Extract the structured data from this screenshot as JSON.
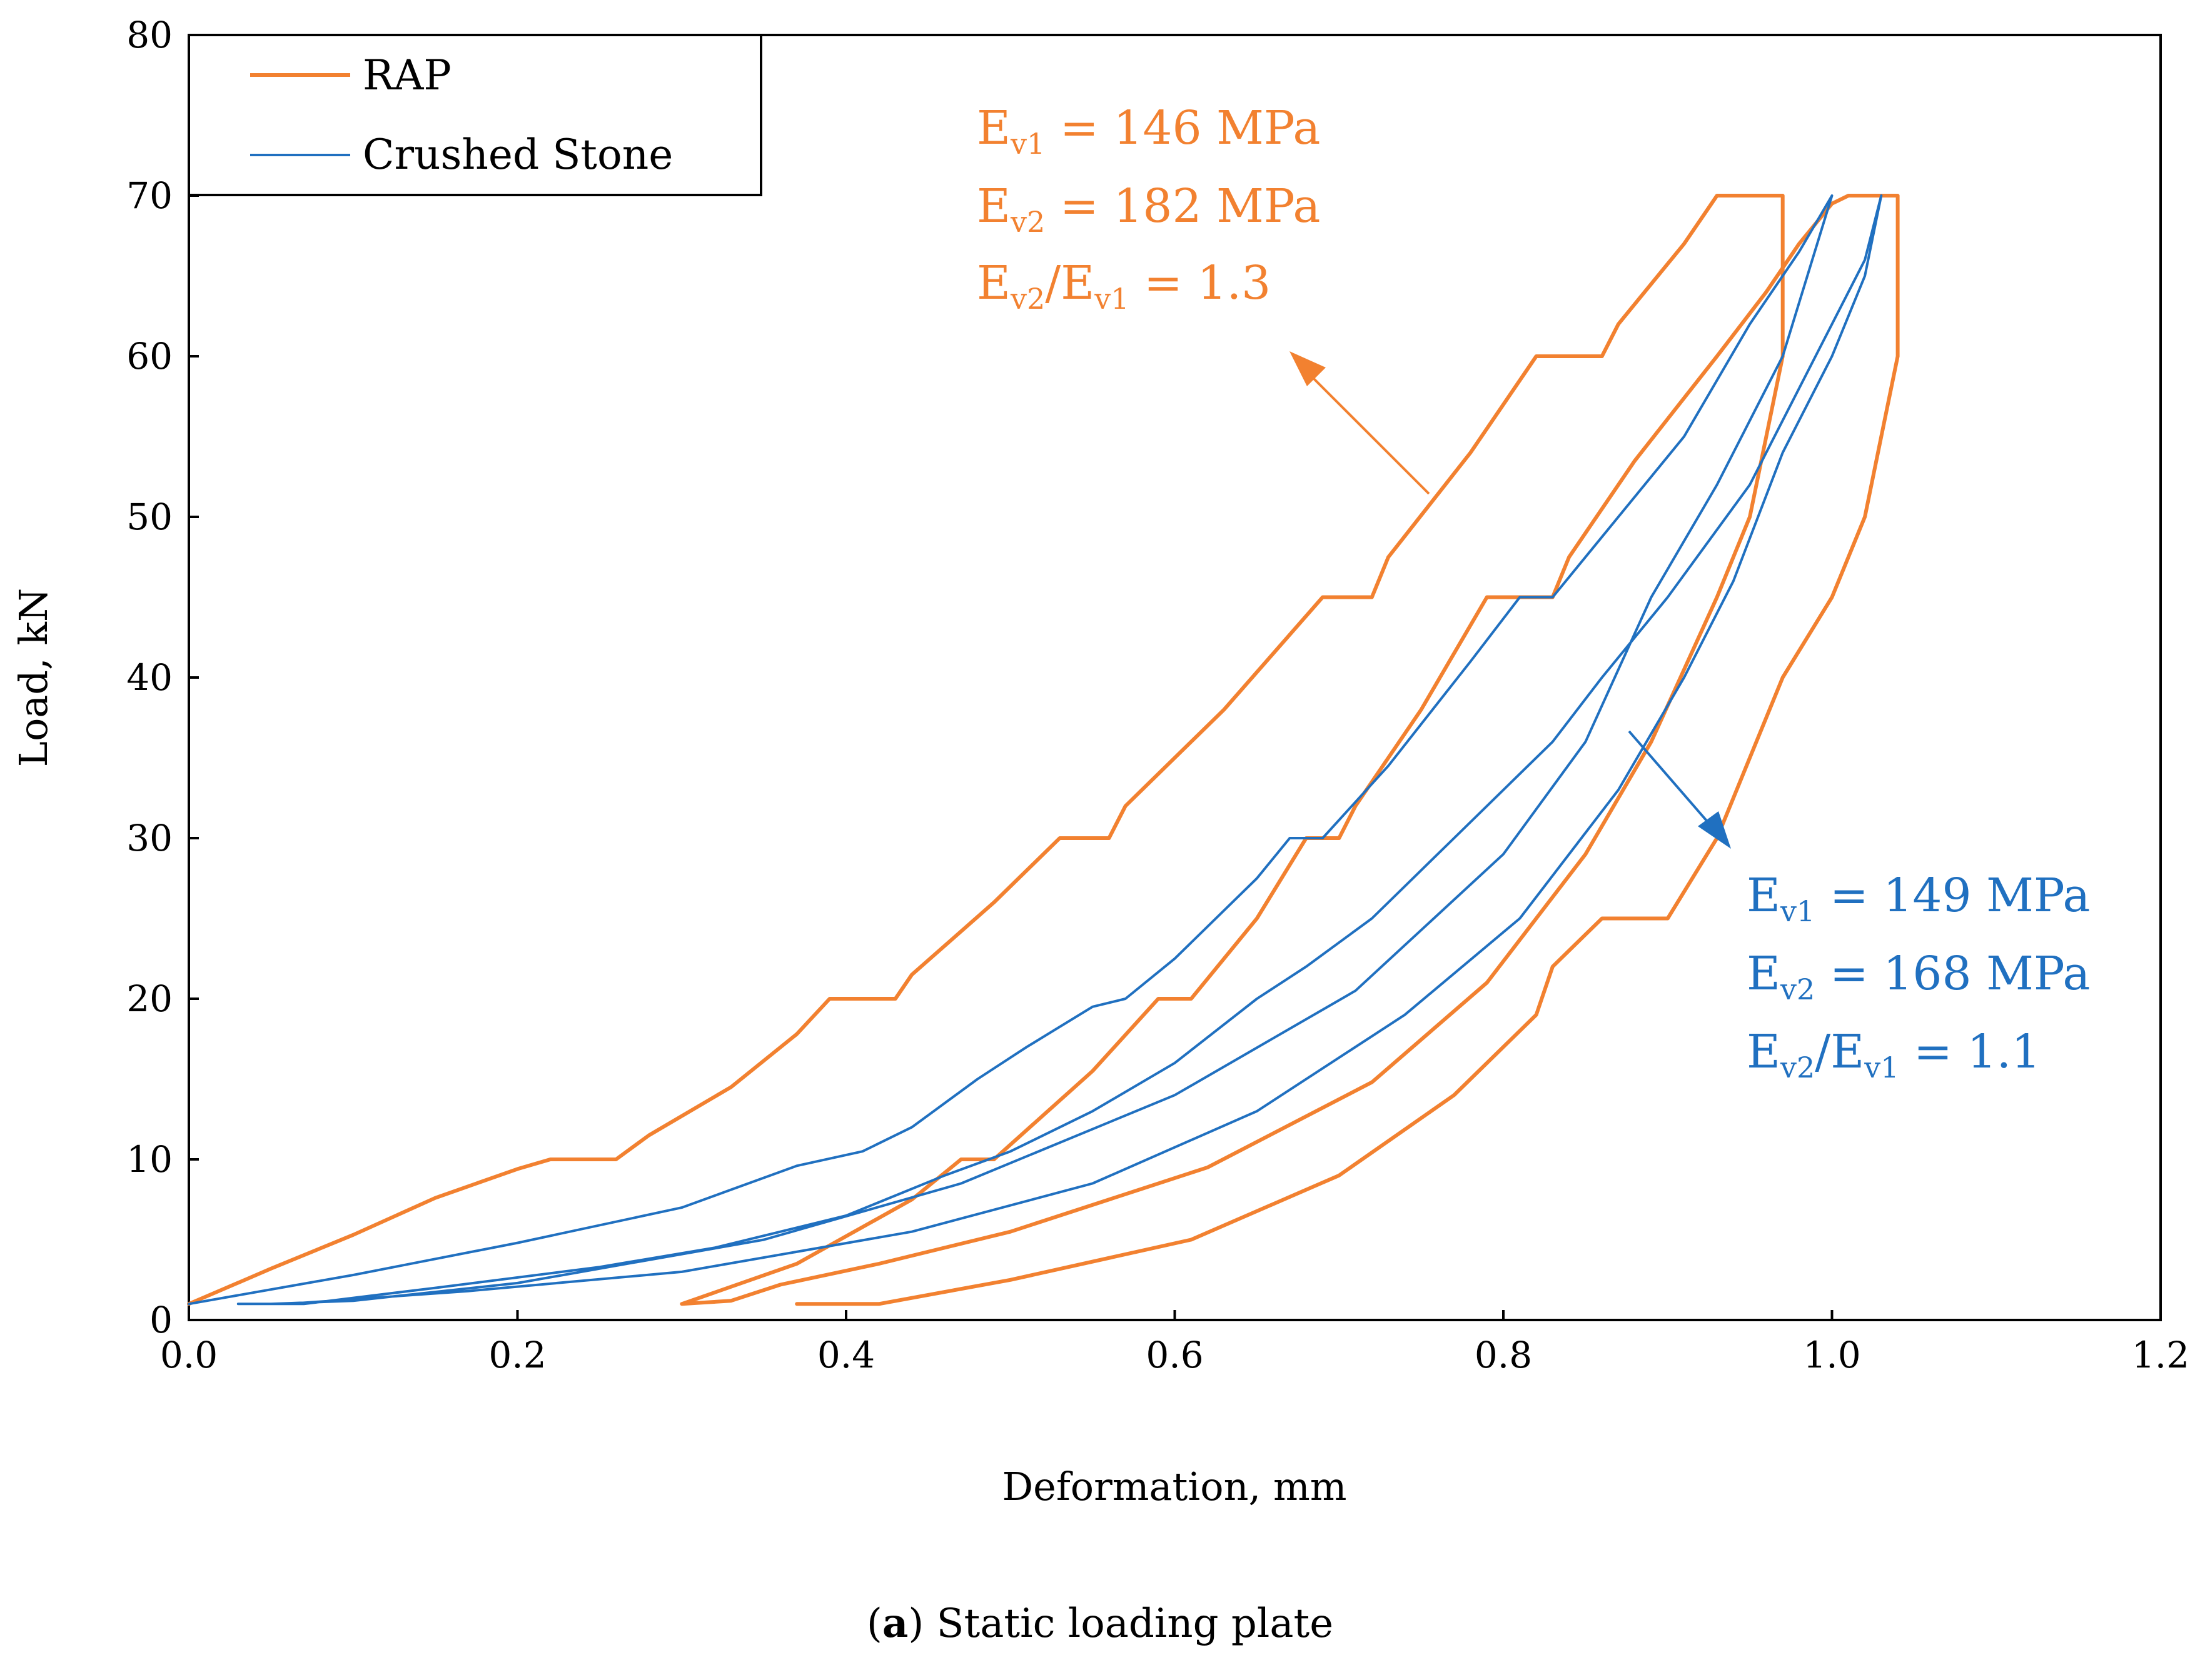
{
  "chart_data": {
    "type": "line",
    "title": "",
    "xlabel": "Deformation, mm",
    "ylabel": "Load, kN",
    "xlim": [
      0.0,
      1.2
    ],
    "ylim": [
      0,
      80
    ],
    "xticks": [
      0.0,
      0.2,
      0.4,
      0.6,
      0.8,
      1.0,
      1.2
    ],
    "xtick_labels": [
      "0.0",
      "0.2",
      "0.4",
      "0.6",
      "0.8",
      "1.0",
      "1.2"
    ],
    "yticks": [
      0,
      10,
      20,
      30,
      40,
      50,
      60,
      70,
      80
    ],
    "ytick_labels": [
      "0",
      "10",
      "20",
      "30",
      "40",
      "50",
      "60",
      "70",
      "80"
    ],
    "grid": false,
    "legend_position": "top-left",
    "series": [
      {
        "name": "RAP",
        "color": "#F28130",
        "x": [
          0.0,
          0.05,
          0.1,
          0.15,
          0.2,
          0.22,
          0.26,
          0.28,
          0.33,
          0.37,
          0.39,
          0.43,
          0.44,
          0.49,
          0.53,
          0.56,
          0.57,
          0.63,
          0.69,
          0.72,
          0.73,
          0.78,
          0.82,
          0.86,
          0.87,
          0.91,
          0.93,
          0.97,
          0.97,
          0.96,
          0.95,
          0.93,
          0.89,
          0.85,
          0.79,
          0.72,
          0.62,
          0.5,
          0.42,
          0.36,
          0.33,
          0.3,
          0.3,
          0.37,
          0.44,
          0.47,
          0.49,
          0.55,
          0.59,
          0.61,
          0.65,
          0.68,
          0.7,
          0.71,
          0.75,
          0.79,
          0.83,
          0.84,
          0.88,
          0.93,
          0.96,
          0.98,
          1.0,
          1.01,
          1.02,
          1.04,
          1.04,
          1.04,
          1.03,
          1.02,
          1.0,
          0.97,
          0.95,
          0.93,
          0.9,
          0.86,
          0.83,
          0.82,
          0.77,
          0.7,
          0.61,
          0.5,
          0.42,
          0.37
        ],
        "y": [
          1,
          3.2,
          5.3,
          7.6,
          9.4,
          10,
          10,
          11.5,
          14.5,
          17.8,
          20,
          20,
          21.5,
          26,
          30,
          30,
          32,
          38,
          45,
          45,
          47.5,
          54,
          60,
          60,
          62,
          67,
          70,
          70,
          60,
          55,
          50,
          45,
          36,
          29,
          21,
          14.8,
          9.5,
          5.5,
          3.5,
          2.2,
          1.2,
          1,
          1,
          3.5,
          7.5,
          10,
          10,
          15.5,
          20,
          20,
          25,
          30,
          30,
          32,
          38,
          45,
          45,
          47.5,
          53.5,
          60,
          64,
          67,
          69.5,
          70,
          70,
          70,
          68,
          60,
          55,
          50,
          45,
          40,
          35,
          30,
          25,
          25,
          22,
          19,
          14,
          9,
          5,
          2.5,
          1,
          1
        ]
      },
      {
        "name": "Crushed Stone",
        "color": "#2070C0",
        "x": [
          0.0,
          0.1,
          0.2,
          0.3,
          0.37,
          0.41,
          0.44,
          0.48,
          0.51,
          0.55,
          0.57,
          0.6,
          0.65,
          0.67,
          0.69,
          0.73,
          0.78,
          0.81,
          0.83,
          0.87,
          0.91,
          0.95,
          0.98,
          1.0,
          1.0,
          0.97,
          0.93,
          0.89,
          0.85,
          0.8,
          0.71,
          0.6,
          0.47,
          0.35,
          0.2,
          0.1,
          0.05,
          0.07,
          0.15,
          0.25,
          0.32,
          0.4,
          0.46,
          0.5,
          0.55,
          0.6,
          0.65,
          0.68,
          0.72,
          0.77,
          0.83,
          0.86,
          0.9,
          0.95,
          0.99,
          1.02,
          1.03,
          1.03,
          1.02,
          1.0,
          0.97,
          0.94,
          0.91,
          0.87,
          0.81,
          0.74,
          0.65,
          0.55,
          0.44,
          0.3,
          0.17,
          0.06,
          0.03
        ],
        "y": [
          1,
          2.8,
          4.8,
          7,
          9.6,
          10.5,
          12,
          15,
          17,
          19.5,
          20,
          22.5,
          27.5,
          30,
          30,
          34.5,
          41,
          45,
          45,
          50,
          55,
          62,
          66.5,
          70,
          70,
          60,
          52,
          45,
          36,
          29,
          20.5,
          14,
          8.5,
          5,
          2.3,
          1.2,
          1,
          1,
          2,
          3.3,
          4.5,
          6.5,
          9,
          10.5,
          13,
          16,
          20,
          22,
          25,
          30,
          36,
          40,
          45,
          52,
          60,
          66,
          70,
          70,
          65,
          60,
          54,
          46,
          40,
          33,
          25,
          19,
          13,
          8.5,
          5.5,
          3,
          1.8,
          1,
          1
        ]
      }
    ],
    "legend": [
      "RAP",
      "Crushed Stone"
    ],
    "annotations": {
      "rap": {
        "line1_main": "E",
        "line1_sub": "v1",
        "line1_rest": " =  146 MPa",
        "line2_main": "E",
        "line2_sub": "v2",
        "line2_rest": " = 182 MPa",
        "line3_main": "E",
        "line3_sub1": "v2",
        "line3_mid": "/E",
        "line3_sub2": "v1",
        "line3_rest": " = 1.3",
        "color": "#F28130"
      },
      "stone": {
        "line1_main": "E",
        "line1_sub": "v1",
        "line1_rest": " =  149 MPa",
        "line2_main": "E",
        "line2_sub": "v2",
        "line2_rest": " = 168 MPa",
        "line3_main": "E",
        "line3_sub1": "v2",
        "line3_mid": "/E",
        "line3_sub2": "v1",
        "line3_rest": " = 1.1",
        "color": "#2070C0"
      }
    }
  },
  "caption": {
    "label": "a",
    "text": " Static loading plate"
  }
}
